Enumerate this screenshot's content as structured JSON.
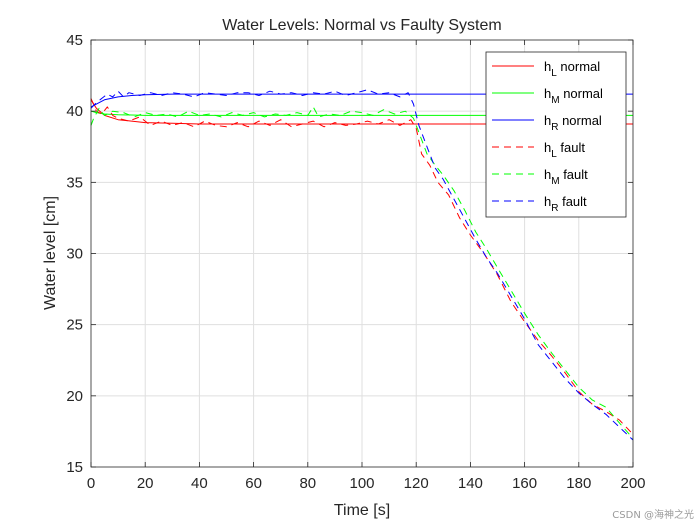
{
  "chart_data": {
    "type": "line",
    "title": "Water Levels: Normal vs Faulty System",
    "xlabel": "Time [s]",
    "ylabel": "Water level [cm]",
    "xlim": [
      0,
      200
    ],
    "ylim": [
      15,
      45
    ],
    "xticks": [
      0,
      20,
      40,
      60,
      80,
      100,
      120,
      140,
      160,
      180,
      200
    ],
    "yticks": [
      15,
      20,
      25,
      30,
      35,
      40,
      45
    ],
    "grid": true,
    "legend_position": "top-right",
    "colors": {
      "red": "#ff0000",
      "green": "#00ff00",
      "blue": "#0000ff",
      "axis": "#262626",
      "grid": "#dfdfdf"
    },
    "series": [
      {
        "base": "h",
        "sub": "L",
        "suffix": "normal",
        "color": "#ff0000",
        "style": "solid",
        "x": [
          0,
          2,
          5,
          10,
          20,
          30,
          40,
          60,
          80,
          100,
          120,
          140,
          160,
          180,
          200
        ],
        "y": [
          40.8,
          40.2,
          39.7,
          39.4,
          39.2,
          39.15,
          39.1,
          39.1,
          39.1,
          39.1,
          39.1,
          39.1,
          39.1,
          39.1,
          39.1
        ]
      },
      {
        "base": "h",
        "sub": "M",
        "suffix": "normal",
        "color": "#00ff00",
        "style": "solid",
        "x": [
          0,
          2,
          5,
          10,
          20,
          40,
          60,
          80,
          100,
          120,
          140,
          160,
          180,
          200
        ],
        "y": [
          40.0,
          39.9,
          39.8,
          39.75,
          39.7,
          39.7,
          39.7,
          39.7,
          39.7,
          39.7,
          39.7,
          39.7,
          39.7,
          39.7
        ]
      },
      {
        "base": "h",
        "sub": "R",
        "suffix": "normal",
        "color": "#0000ff",
        "style": "solid",
        "x": [
          0,
          2,
          5,
          10,
          15,
          20,
          30,
          40,
          60,
          80,
          100,
          120,
          140,
          160,
          180,
          200
        ],
        "y": [
          40.3,
          40.5,
          40.8,
          41.0,
          41.1,
          41.15,
          41.2,
          41.2,
          41.2,
          41.2,
          41.2,
          41.2,
          41.2,
          41.2,
          41.2,
          41.2
        ]
      },
      {
        "base": "h",
        "sub": "L",
        "suffix": "fault",
        "color": "#ff0000",
        "style": "dashed",
        "x": [
          0,
          2,
          4,
          6,
          8,
          10,
          14,
          18,
          22,
          26,
          30,
          34,
          38,
          42,
          46,
          50,
          54,
          58,
          62,
          66,
          70,
          74,
          78,
          82,
          86,
          90,
          94,
          98,
          102,
          106,
          110,
          114,
          118,
          120,
          122,
          125,
          128,
          132,
          136,
          140,
          145,
          150,
          155,
          160,
          165,
          170,
          175,
          180,
          185,
          190,
          195,
          200
        ],
        "y": [
          40.9,
          40.0,
          39.8,
          40.3,
          39.7,
          39.5,
          39.3,
          39.6,
          39.0,
          39.3,
          39.0,
          39.2,
          38.9,
          39.3,
          39.0,
          38.9,
          39.2,
          38.9,
          39.3,
          39.0,
          39.4,
          38.9,
          39.1,
          39.3,
          38.9,
          39.2,
          39.0,
          39.1,
          39.3,
          39.1,
          39.4,
          39.0,
          39.4,
          38.8,
          37.0,
          36.2,
          35.0,
          34.1,
          32.5,
          31.3,
          30.0,
          28.5,
          26.6,
          25.2,
          23.9,
          22.8,
          21.6,
          20.3,
          19.4,
          18.9,
          18.3,
          17.3
        ]
      },
      {
        "base": "h",
        "sub": "M",
        "suffix": "fault",
        "color": "#00ff00",
        "style": "dashed",
        "x": [
          0,
          1,
          3,
          5,
          8,
          12,
          16,
          20,
          24,
          28,
          32,
          36,
          40,
          44,
          48,
          52,
          56,
          60,
          64,
          68,
          72,
          76,
          80,
          82,
          84,
          88,
          92,
          96,
          100,
          104,
          108,
          112,
          116,
          119,
          121,
          124,
          127,
          130,
          134,
          138,
          142,
          146,
          150,
          155,
          160,
          165,
          170,
          175,
          180,
          185,
          190,
          195,
          200
        ],
        "y": [
          39.0,
          39.5,
          40.2,
          39.7,
          40.0,
          39.9,
          39.6,
          39.9,
          39.7,
          39.8,
          39.6,
          40.0,
          39.7,
          39.8,
          39.6,
          39.9,
          39.7,
          39.9,
          39.6,
          39.8,
          39.7,
          39.9,
          39.7,
          40.3,
          39.6,
          39.8,
          39.7,
          40.0,
          39.9,
          39.7,
          40.1,
          39.8,
          40.0,
          39.5,
          38.5,
          37.0,
          36.2,
          35.5,
          34.4,
          33.0,
          31.5,
          30.3,
          29.0,
          27.4,
          25.8,
          24.3,
          23.0,
          21.8,
          20.6,
          19.7,
          19.2,
          18.1,
          17.0
        ]
      },
      {
        "base": "h",
        "sub": "R",
        "suffix": "fault",
        "color": "#0000ff",
        "style": "dashed",
        "x": [
          0,
          2,
          4,
          6,
          8,
          10,
          12,
          14,
          16,
          18,
          22,
          26,
          30,
          34,
          38,
          42,
          46,
          50,
          54,
          58,
          62,
          66,
          70,
          74,
          78,
          82,
          86,
          90,
          94,
          98,
          102,
          106,
          110,
          114,
          117,
          119,
          121,
          124,
          127,
          130,
          134,
          138,
          142,
          146,
          150,
          155,
          160,
          165,
          170,
          175,
          180,
          185,
          190,
          195,
          200
        ],
        "y": [
          40.2,
          40.6,
          40.9,
          41.2,
          41.0,
          41.4,
          41.0,
          41.3,
          41.2,
          41.1,
          41.3,
          41.1,
          41.3,
          41.2,
          41.0,
          41.3,
          41.2,
          41.1,
          41.3,
          41.3,
          41.1,
          41.4,
          41.2,
          41.3,
          41.1,
          41.3,
          41.2,
          41.4,
          41.1,
          41.3,
          41.5,
          41.2,
          41.3,
          41.0,
          41.3,
          40.5,
          39.0,
          37.5,
          36.0,
          35.2,
          33.8,
          32.4,
          31.0,
          29.7,
          28.6,
          27.0,
          25.4,
          23.6,
          22.4,
          21.2,
          20.2,
          19.4,
          18.7,
          17.8,
          16.9
        ]
      }
    ]
  },
  "watermark": "CSDN @海神之光"
}
